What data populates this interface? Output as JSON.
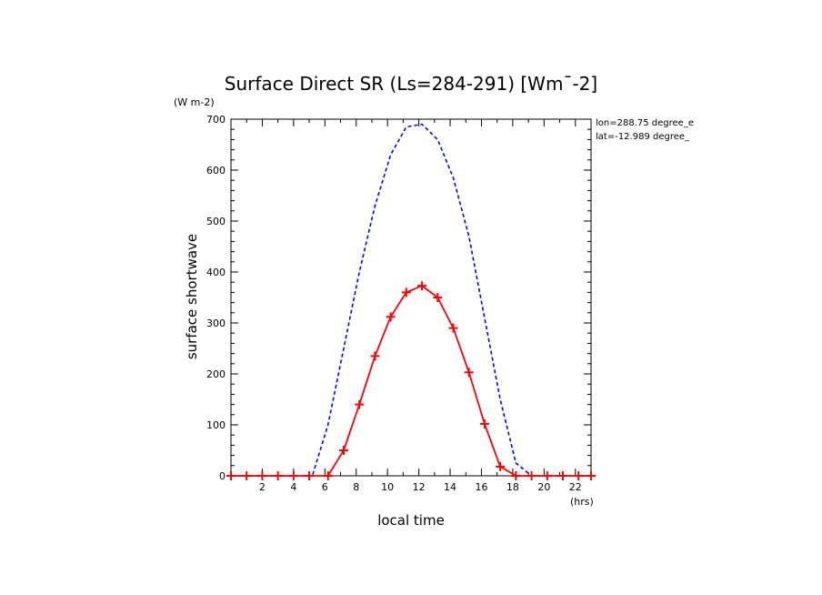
{
  "chart_data": {
    "type": "line",
    "title": "Surface Direct SR (Ls=284-291) [Wm¯-2]",
    "y_units": "(W m-2)",
    "ylabel": "surface shortwave",
    "xlabel": "local time",
    "x_units": "(hrs)",
    "annotations": [
      "lon=288.75 degree_e",
      "lat=-12.989 degree_"
    ],
    "xlim": [
      0,
      23
    ],
    "ylim": [
      0,
      700
    ],
    "x_ticks": [
      2,
      4,
      6,
      8,
      10,
      12,
      14,
      16,
      18,
      20,
      22
    ],
    "y_ticks": [
      0,
      100,
      200,
      300,
      400,
      500,
      600,
      700
    ],
    "grid": false,
    "series": [
      {
        "color": "#0000ff",
        "style": "dashed",
        "marker": "none",
        "x": [
          0,
          1,
          2,
          3,
          4,
          5,
          5.2,
          6.2,
          7.2,
          8.2,
          9.2,
          10.2,
          11.2,
          12.2,
          13.2,
          14.2,
          15.2,
          16.2,
          17.2,
          18.2,
          19.2,
          20.2,
          21.2,
          22.2,
          23
        ],
        "values": [
          0,
          0,
          0,
          0,
          0,
          0,
          0,
          100,
          250,
          400,
          530,
          630,
          685,
          690,
          660,
          585,
          470,
          310,
          150,
          25,
          0,
          0,
          0,
          0,
          0
        ]
      },
      {
        "color": "#ff0000",
        "style": "solid",
        "marker": "plus",
        "x": [
          0,
          1,
          2,
          3,
          4,
          5,
          6.2,
          7.2,
          8.2,
          9.2,
          10.2,
          11.2,
          12.2,
          13.2,
          14.2,
          15.2,
          16.2,
          17.2,
          18.2,
          19.2,
          20.2,
          21.2,
          22.2,
          23
        ],
        "values": [
          0,
          0,
          0,
          0,
          0,
          0,
          0,
          50,
          140,
          235,
          312,
          360,
          373,
          350,
          290,
          203,
          102,
          18,
          0,
          0,
          0,
          0,
          0,
          0
        ]
      }
    ]
  }
}
